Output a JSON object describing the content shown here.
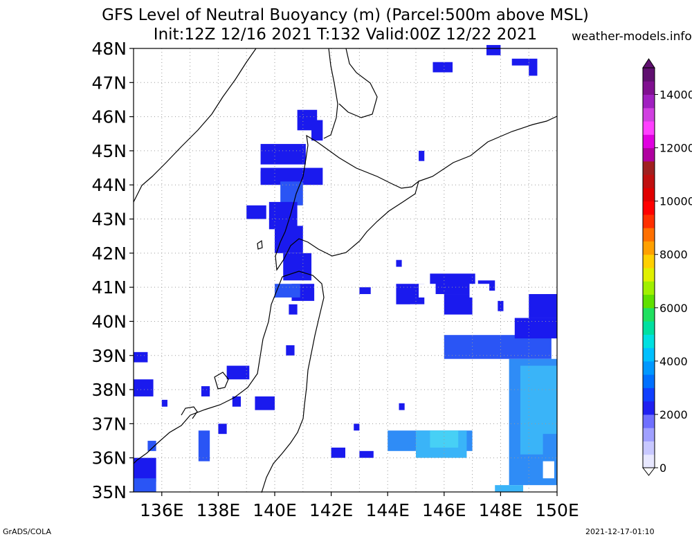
{
  "title_line1": "GFS Level of Neutral Buoyancy (m) (Parcel:500m above MSL)",
  "title_line2": "Init:12Z 12/16 2021 T:132 Valid:00Z 12/22 2021",
  "site": "weather-models.info",
  "footer_left": "GrADS/COLA",
  "footer_right": "2021-12-17-01:10",
  "lat_labels": [
    "48N",
    "47N",
    "46N",
    "45N",
    "44N",
    "43N",
    "42N",
    "41N",
    "40N",
    "39N",
    "38N",
    "37N",
    "36N",
    "35N"
  ],
  "lon_labels": [
    "136E",
    "138E",
    "140E",
    "142E",
    "144E",
    "146E",
    "148E",
    "150E"
  ],
  "colorbar_labels": [
    "14000",
    "12000",
    "10000",
    "8000",
    "6000",
    "4000",
    "2000",
    "0"
  ],
  "colors": {
    "coast": "#000000",
    "grid": "#9a9a9a",
    "colorbar": [
      "#e8e8ff",
      "#c8c8ff",
      "#a0a0ff",
      "#7070ff",
      "#2020f0",
      "#1040ff",
      "#0070ff",
      "#0098ff",
      "#00c0ff",
      "#00e0e0",
      "#00e0a0",
      "#20e060",
      "#60e000",
      "#a0f000",
      "#e0f000",
      "#ffd000",
      "#ffa000",
      "#ff7000",
      "#ff3000",
      "#ff0000",
      "#e00000",
      "#c01010",
      "#a02020",
      "#b000a0",
      "#e000e0",
      "#ff40ff",
      "#d040e0",
      "#a020c0",
      "#801090",
      "#601070"
    ]
  }
}
